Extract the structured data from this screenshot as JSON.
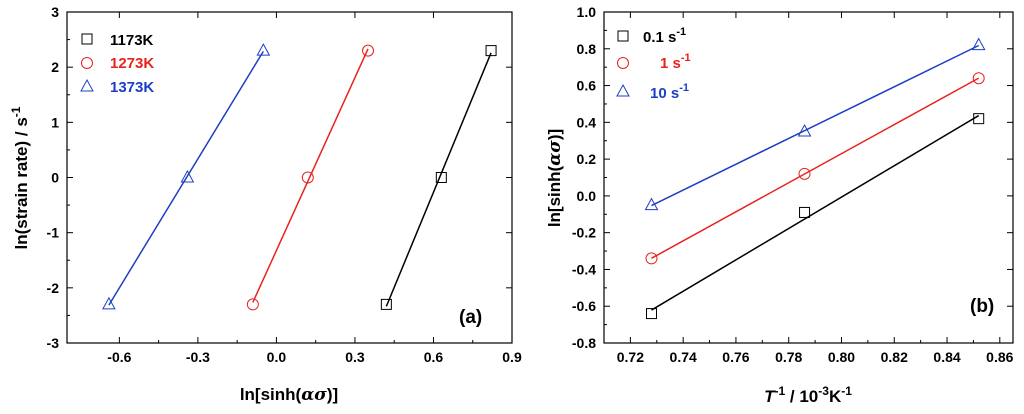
{
  "colors": {
    "black": "#000000",
    "red": "#e8221c",
    "blue": "#1d3fc4"
  },
  "chart_data": [
    {
      "type": "scatter",
      "panel": "(a)",
      "xlabel_prefix": "ln[sinh(",
      "xlabel_symbol": "ασ",
      "xlabel_suffix": ")]",
      "ylabel_main": "ln(strain rate) / s",
      "ylabel_sup": "-1",
      "xlim": [
        -0.8,
        0.9
      ],
      "ylim": [
        -3,
        3
      ],
      "xticks": [
        -0.6,
        -0.3,
        0.0,
        0.3,
        0.6,
        0.9
      ],
      "xtick_labels": [
        "-0.6",
        "-0.3",
        "0.0",
        "0.3",
        "0.6",
        "0.9"
      ],
      "yticks": [
        -3,
        -2,
        -1,
        0,
        1,
        2,
        3
      ],
      "ytick_labels": [
        "-3",
        "-2",
        "-1",
        "0",
        "1",
        "2",
        "3"
      ],
      "legend_position": "top-left",
      "series": [
        {
          "name": "1173K",
          "color": "#000000",
          "marker": "square",
          "x": [
            0.42,
            0.63,
            0.82
          ],
          "y": [
            -2.3,
            0.0,
            2.3
          ]
        },
        {
          "name": "1273K",
          "color": "#e8221c",
          "marker": "circle",
          "x": [
            -0.09,
            0.12,
            0.35
          ],
          "y": [
            -2.3,
            0.0,
            2.3
          ]
        },
        {
          "name": "1373K",
          "color": "#1d3fc4",
          "marker": "triangle",
          "x": [
            -0.64,
            -0.34,
            -0.05
          ],
          "y": [
            -2.3,
            0.0,
            2.3
          ]
        }
      ]
    },
    {
      "type": "scatter",
      "panel": "(b)",
      "xlabel_italic": "T",
      "xlabel_sup1": "-1",
      "xlabel_mid": " / 10",
      "xlabel_sup2": "-3",
      "xlabel_unit": "K",
      "xlabel_sup3": "-1",
      "ylabel_prefix": "ln[sinh(",
      "ylabel_symbol": "ασ",
      "ylabel_suffix": ")]",
      "xlim": [
        0.71,
        0.865
      ],
      "ylim": [
        -0.8,
        1.0
      ],
      "xticks": [
        0.72,
        0.74,
        0.76,
        0.78,
        0.8,
        0.82,
        0.84,
        0.86
      ],
      "xtick_labels": [
        "0.72",
        "0.74",
        "0.76",
        "0.78",
        "0.80",
        "0.82",
        "0.84",
        "0.86"
      ],
      "yticks": [
        -0.8,
        -0.6,
        -0.4,
        -0.2,
        0.0,
        0.2,
        0.4,
        0.6,
        0.8,
        1.0
      ],
      "ytick_labels": [
        "-0.8",
        "-0.6",
        "-0.4",
        "-0.2",
        "0.0",
        "0.2",
        "0.4",
        "0.6",
        "0.8",
        "1.0"
      ],
      "legend_position": "top-left",
      "series": [
        {
          "name": "0.1 s",
          "name_sup": "-1",
          "color": "#000000",
          "marker": "square",
          "x": [
            0.728,
            0.786,
            0.852
          ],
          "y": [
            -0.64,
            -0.09,
            0.42
          ]
        },
        {
          "name": "1 s",
          "name_sup": "-1",
          "color": "#e8221c",
          "marker": "circle",
          "x": [
            0.728,
            0.786,
            0.852
          ],
          "y": [
            -0.34,
            0.12,
            0.64
          ]
        },
        {
          "name": "10 s",
          "name_sup": "-1",
          "color": "#1d3fc4",
          "marker": "triangle",
          "x": [
            0.728,
            0.786,
            0.852
          ],
          "y": [
            -0.05,
            0.35,
            0.82
          ]
        }
      ]
    }
  ]
}
